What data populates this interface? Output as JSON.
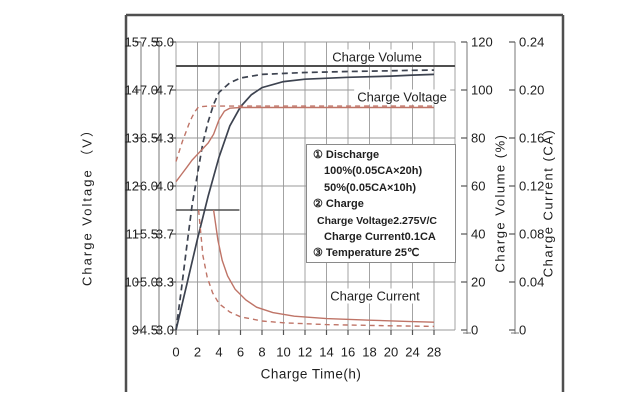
{
  "chart_data": {
    "type": "line",
    "xlabel": "Charge Time(h)",
    "x_tick_labels": [
      "0",
      "2",
      "4",
      "6",
      "8",
      "10",
      "12",
      "14",
      "16",
      "18",
      "20",
      "24",
      "28"
    ],
    "x_tick_values": [
      0,
      2,
      4,
      6,
      8,
      10,
      12,
      14,
      16,
      18,
      20,
      24,
      28
    ],
    "grid": true,
    "axes": {
      "left_voltage_12v": {
        "ticks": [
          "15",
          "14",
          "13",
          "12",
          "11",
          "10",
          "9"
        ],
        "range": [
          9,
          15
        ]
      },
      "left_voltage_6v": {
        "ticks": [
          "7.5",
          "7.0",
          "6.5",
          "6.0",
          "5.5",
          "5.0",
          "4.5"
        ],
        "range": [
          4.5,
          7.5
        ]
      },
      "left_voltage_4v": {
        "title": "Charge Voltage （V）",
        "ticks": [
          "5.0",
          "4.7",
          "4.3",
          "4.0",
          "3.7",
          "3.3",
          "3.0"
        ],
        "range": [
          3.0,
          5.0
        ]
      },
      "right_volume": {
        "title": "Charge Volume (%)",
        "ticks": [
          "120",
          "100",
          "80",
          "60",
          "40",
          "20",
          "0"
        ],
        "range": [
          0,
          120
        ]
      },
      "right_current": {
        "title": "Charge Current (CA)",
        "ticks": [
          "0.24",
          "0.20",
          "0.16",
          "0.12",
          "0.08",
          "0.04",
          "0"
        ],
        "range": [
          0,
          0.24
        ]
      }
    },
    "curve_labels": {
      "volume": "Charge Volume",
      "voltage": "Charge Voltage",
      "current": "Charge Current"
    },
    "colors": {
      "volume_curve": "#3d4350",
      "voltage_current_curve": "#bf7467",
      "reference_line": "#4f4f4f",
      "grid": "#999999",
      "frame": "#4f4f4f"
    },
    "reference_lines": [
      {
        "name": "max-volume-line",
        "axis": "volume",
        "value": 110,
        "full_width": true
      },
      {
        "name": "constant-current-line",
        "axis": "current",
        "value": 0.1,
        "t_start": 0,
        "t_end": 5.9
      }
    ],
    "series": [
      {
        "name": "charge-volume-100pct-discharge",
        "axis": "volume",
        "style": "solid",
        "points": [
          [
            0,
            0
          ],
          [
            1,
            19
          ],
          [
            2,
            38
          ],
          [
            3,
            56
          ],
          [
            4,
            72
          ],
          [
            5,
            85
          ],
          [
            6,
            93
          ],
          [
            7,
            98
          ],
          [
            8,
            101
          ],
          [
            10,
            103.5
          ],
          [
            12,
            104.5
          ],
          [
            16,
            105.3
          ],
          [
            20,
            105.8
          ],
          [
            24,
            106.2
          ],
          [
            28,
            106.5
          ]
        ]
      },
      {
        "name": "charge-volume-50pct-discharge",
        "axis": "volume",
        "style": "dashed",
        "points": [
          [
            0,
            0
          ],
          [
            0.5,
            17
          ],
          [
            1,
            35
          ],
          [
            1.5,
            52
          ],
          [
            2,
            65
          ],
          [
            2.5,
            78
          ],
          [
            3,
            87
          ],
          [
            3.5,
            94
          ],
          [
            4,
            99
          ],
          [
            5,
            103
          ],
          [
            6,
            105
          ],
          [
            8,
            106.5
          ],
          [
            12,
            107.3
          ],
          [
            16,
            107.7
          ],
          [
            20,
            108
          ],
          [
            24,
            108.2
          ],
          [
            28,
            108.3
          ]
        ]
      },
      {
        "name": "charge-voltage-100pct-discharge",
        "axis": "voltage",
        "style": "solid",
        "points": [
          [
            0,
            4.03
          ],
          [
            0.5,
            4.08
          ],
          [
            1,
            4.13
          ],
          [
            1.5,
            4.18
          ],
          [
            2,
            4.22
          ],
          [
            2.5,
            4.26
          ],
          [
            3,
            4.3
          ],
          [
            3.5,
            4.36
          ],
          [
            4,
            4.46
          ],
          [
            4.5,
            4.52
          ],
          [
            5,
            4.54
          ],
          [
            6,
            4.545
          ],
          [
            28,
            4.545
          ]
        ]
      },
      {
        "name": "charge-voltage-50pct-discharge",
        "axis": "voltage",
        "style": "dashed",
        "points": [
          [
            0,
            4.17
          ],
          [
            0.3,
            4.24
          ],
          [
            0.6,
            4.31
          ],
          [
            0.9,
            4.37
          ],
          [
            1.2,
            4.43
          ],
          [
            1.5,
            4.48
          ],
          [
            1.8,
            4.52
          ],
          [
            2.1,
            4.55
          ],
          [
            3,
            4.555
          ],
          [
            28,
            4.555
          ]
        ]
      },
      {
        "name": "charge-current-100pct-discharge",
        "axis": "current",
        "style": "solid",
        "points": [
          [
            3.5,
            0.1
          ],
          [
            3.9,
            0.075
          ],
          [
            4.3,
            0.058
          ],
          [
            4.8,
            0.045
          ],
          [
            5.5,
            0.034
          ],
          [
            6.5,
            0.025
          ],
          [
            7.5,
            0.019
          ],
          [
            9,
            0.0145
          ],
          [
            11,
            0.0115
          ],
          [
            14,
            0.0095
          ],
          [
            18,
            0.0082
          ],
          [
            23,
            0.0072
          ],
          [
            28,
            0.0065
          ]
        ]
      },
      {
        "name": "charge-current-50pct-discharge",
        "axis": "current",
        "style": "dashed",
        "points": [
          [
            2.1,
            0.1
          ],
          [
            2.5,
            0.062
          ],
          [
            2.9,
            0.044
          ],
          [
            3.4,
            0.031
          ],
          [
            4,
            0.022
          ],
          [
            5,
            0.015
          ],
          [
            6,
            0.011
          ],
          [
            8,
            0.0075
          ],
          [
            10,
            0.006
          ],
          [
            14,
            0.0045
          ],
          [
            20,
            0.0035
          ],
          [
            28,
            0.003
          ]
        ]
      }
    ],
    "annotation": {
      "lines": [
        "①  Discharge",
        "100%(0.05CA×20h)",
        "50%(0.05CA×10h)",
        "②  Charge",
        "Charge Voltage2.275V/C",
        "Charge Current0.1CA",
        "③ Temperature 25℃"
      ]
    }
  }
}
